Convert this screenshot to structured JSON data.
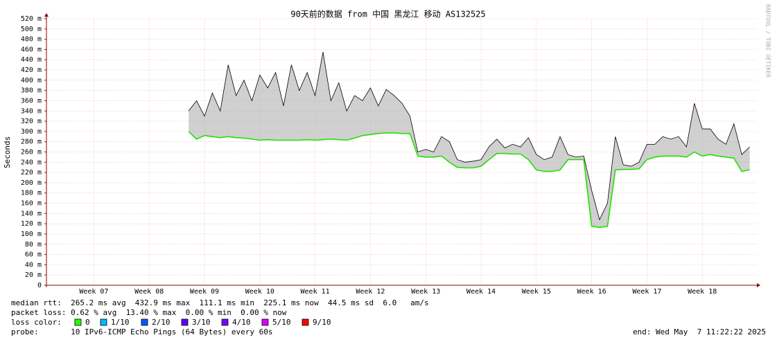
{
  "chart_data": {
    "type": "line",
    "title": "90天前的数据 from 中国 黑龙江 移动 AS132525",
    "watermark": "RRDTOOL / TOBI OETIKER",
    "y_label": "Seconds",
    "x": [
      18,
      19,
      20,
      21,
      22,
      23,
      24,
      25,
      26,
      27,
      28,
      29,
      30,
      31,
      32,
      33,
      34,
      35,
      36,
      37,
      38,
      39,
      40,
      41,
      42,
      43,
      44,
      45,
      46,
      47,
      48,
      49,
      50,
      51,
      52,
      53,
      54,
      55,
      56,
      57,
      58,
      59,
      60,
      61,
      62,
      63,
      64,
      65,
      66,
      67,
      68,
      69,
      70,
      71,
      72,
      73,
      74,
      75,
      76,
      77,
      78,
      79,
      80,
      81,
      82,
      83,
      84,
      85,
      86,
      87,
      88,
      89
    ],
    "series": [
      {
        "name": "0",
        "color": "#20e000",
        "values": [
          0.3,
          0.285,
          0.292,
          0.29,
          0.288,
          0.29,
          0.288,
          0.287,
          0.285,
          0.283,
          0.284,
          0.283,
          0.283,
          0.283,
          0.283,
          0.284,
          0.283,
          0.284,
          0.285,
          0.284,
          0.283,
          0.287,
          0.292,
          0.294,
          0.296,
          0.297,
          0.297,
          0.296,
          0.296,
          0.252,
          0.25,
          0.25,
          0.252,
          0.24,
          0.23,
          0.229,
          0.229,
          0.232,
          0.245,
          0.257,
          0.257,
          0.256,
          0.256,
          0.245,
          0.225,
          0.222,
          0.222,
          0.225,
          0.245,
          0.245,
          0.245,
          0.115,
          0.113,
          0.115,
          0.225,
          0.226,
          0.226,
          0.227,
          0.245,
          0.25,
          0.252,
          0.252,
          0.252,
          0.25,
          0.26,
          0.252,
          0.255,
          0.252,
          0.25,
          0.248,
          0.222,
          0.225
        ]
      },
      {
        "color": "#000000",
        "values": [
          0.34,
          0.36,
          0.33,
          0.375,
          0.34,
          0.43,
          0.37,
          0.4,
          0.36,
          0.41,
          0.385,
          0.415,
          0.35,
          0.43,
          0.38,
          0.415,
          0.37,
          0.455,
          0.36,
          0.395,
          0.34,
          0.37,
          0.36,
          0.385,
          0.35,
          0.382,
          0.37,
          0.355,
          0.33,
          0.26,
          0.265,
          0.26,
          0.29,
          0.28,
          0.245,
          0.24,
          0.242,
          0.245,
          0.27,
          0.285,
          0.268,
          0.275,
          0.27,
          0.288,
          0.255,
          0.245,
          0.25,
          0.29,
          0.255,
          0.25,
          0.252,
          0.185,
          0.128,
          0.16,
          0.29,
          0.235,
          0.232,
          0.24,
          0.275,
          0.275,
          0.29,
          0.285,
          0.29,
          0.27,
          0.355,
          0.305,
          0.305,
          0.285,
          0.275,
          0.315,
          0.255,
          0.27
        ]
      }
    ],
    "xlim": [
      0,
      90
    ],
    "xticks": [
      {
        "value": 6,
        "label": "Week 07"
      },
      {
        "value": 13,
        "label": "Week 08"
      },
      {
        "value": 20,
        "label": "Week 09"
      },
      {
        "value": 27,
        "label": "Week 10"
      },
      {
        "value": 34,
        "label": "Week 11"
      },
      {
        "value": 41,
        "label": "Week 12"
      },
      {
        "value": 48,
        "label": "Week 13"
      },
      {
        "value": 55,
        "label": "Week 14"
      },
      {
        "value": 62,
        "label": "Week 15"
      },
      {
        "value": 69,
        "label": "Week 16"
      },
      {
        "value": 76,
        "label": "Week 17"
      },
      {
        "value": 83,
        "label": "Week 18"
      }
    ],
    "ylim": [
      0,
      0.52
    ],
    "yticks": [
      0,
      {
        "value": 0.02,
        "label": "20 m"
      },
      {
        "value": 0.04,
        "label": "40 m"
      },
      {
        "value": 0.06,
        "label": "60 m"
      },
      {
        "value": 0.08,
        "label": "80 m"
      },
      {
        "value": 0.1,
        "label": "100 m"
      },
      {
        "value": 0.12,
        "label": "120 m"
      },
      {
        "value": 0.14,
        "label": "140 m"
      },
      {
        "value": 0.16,
        "label": "160 m"
      },
      {
        "value": 0.18,
        "label": "180 m"
      },
      {
        "value": 0.2,
        "label": "200 m"
      },
      {
        "value": 0.22,
        "label": "220 m"
      },
      {
        "value": 0.24,
        "label": "240 m"
      },
      {
        "value": 0.26,
        "label": "260 m"
      },
      {
        "value": 0.28,
        "label": "280 m"
      },
      {
        "value": 0.3,
        "label": "300 m"
      },
      {
        "value": 0.32,
        "label": "320 m"
      },
      {
        "value": 0.34,
        "label": "340 m"
      },
      {
        "value": 0.36,
        "label": "360 m"
      },
      {
        "value": 0.38,
        "label": "380 m"
      },
      {
        "value": 0.4,
        "label": "400 m"
      },
      {
        "value": 0.42,
        "label": "420 m"
      },
      {
        "value": 0.44,
        "label": "440 m"
      },
      {
        "value": 0.46,
        "label": "460 m"
      },
      {
        "value": 0.48,
        "label": "480 m"
      },
      {
        "value": 0.5,
        "label": "500 m"
      },
      {
        "value": 0.52,
        "label": "520 m"
      }
    ],
    "grid": true,
    "stats": [
      "median rtt:  265.2 ms avg  432.9 ms max  111.1 ms min  225.1 ms now  44.5 ms sd  6.0   am/s",
      "packet loss: 0.62 % avg  13.40 % max  0.00 % min  0.00 % now"
    ],
    "legend": {
      "title": "loss color:",
      "items": [
        {
          "label": "0",
          "color": "#26ff00"
        },
        {
          "label": "1/10",
          "color": "#00b8ff"
        },
        {
          "label": "2/10",
          "color": "#0059ff"
        },
        {
          "label": "3/10",
          "color": "#5e00ff"
        },
        {
          "label": "4/10",
          "color": "#7e00ff"
        },
        {
          "label": "5/10",
          "color": "#dd00ff"
        },
        {
          "label": "9/10",
          "color": "#ff0000"
        }
      ]
    },
    "probe": "probe:       10 IPv6-ICMP Echo Pings (64 Bytes) every 60s",
    "end": "end: Wed May  7 11:22:22 2025"
  }
}
